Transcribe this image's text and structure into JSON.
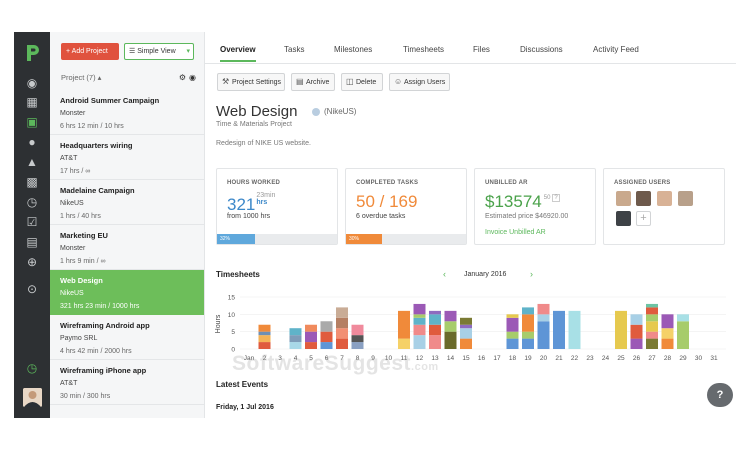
{
  "sidebar": {
    "icons": [
      "dashboard-icon",
      "companies-icon",
      "projects-icon",
      "contacts-icon",
      "invoices-icon",
      "reports-icon",
      "time-icon",
      "tasks-icon",
      "documents-icon",
      "add-icon",
      "expand-icon"
    ],
    "timer_icon": "timer-icon"
  },
  "project_list": {
    "add_project": "Add Project",
    "view_mode": "Simple View",
    "header": "Project (7) ▴",
    "items": [
      {
        "name": "Android Summer Campaign",
        "client": "Monster",
        "hours": "6 hrs 12 min / 10 hrs"
      },
      {
        "name": "Headquarters wiring",
        "client": "AT&T",
        "hours": "17 hrs / ∞"
      },
      {
        "name": "Madelaine Campaign",
        "client": "NikeUS",
        "hours": "1 hrs / 40 hrs"
      },
      {
        "name": "Marketing EU",
        "client": "Monster",
        "hours": "1 hrs 9 min / ∞"
      },
      {
        "name": "Web Design",
        "client": "NikeUS",
        "hours": "321 hrs 23 min / 1000 hrs",
        "selected": true
      },
      {
        "name": "Wireframing Android app",
        "client": "Paymo SRL",
        "hours": "4 hrs 42 min / 2000 hrs"
      },
      {
        "name": "Wireframing iPhone app",
        "client": "AT&T",
        "hours": "30 min / 300 hrs"
      }
    ]
  },
  "tabs": [
    "Overview",
    "Tasks",
    "Milestones",
    "Timesheets",
    "Files",
    "Discussions",
    "Activity Feed"
  ],
  "toolbar": {
    "settings": "Project Settings",
    "archive": "Archive",
    "delete": "Delete",
    "assign": "Assign Users"
  },
  "project": {
    "title": "Web Design",
    "client": "(NikeUS)",
    "type": "Time & Materials Project",
    "description": "Redesign of NIKE US website."
  },
  "cards": {
    "hours": {
      "label": "HOURS WORKED",
      "value": "321",
      "unit_top": "23min",
      "unit_bottom": "hrs",
      "sub": "from 1000 hrs",
      "progress_label": "32%",
      "progress": 0.32
    },
    "tasks": {
      "label": "COMPLETED TASKS",
      "value": "50 / 169",
      "sub": "6 overdue tasks",
      "progress_label": "30%",
      "progress": 0.3
    },
    "ar": {
      "label": "UNBILLED AR",
      "value": "$13574",
      "cents": "50",
      "sub": "Estimated price $46920.00",
      "link": "Invoice Unbilled AR"
    },
    "users": {
      "label": "ASSIGNED USERS",
      "add": "+"
    }
  },
  "timesheets": {
    "title": "Timesheets",
    "month": "January 2016"
  },
  "latest_events": {
    "title": "Latest Events",
    "date": "Friday, 1 Jul 2016"
  },
  "chart_data": {
    "type": "bar",
    "stacked": true,
    "ylabel": "Hours",
    "ylim": [
      0,
      15
    ],
    "yticks": [
      0,
      5,
      10,
      15
    ],
    "categories": [
      "Jan",
      "2",
      "3",
      "4",
      "5",
      "6",
      "7",
      "8",
      "9",
      "10",
      "11",
      "12",
      "13",
      "14",
      "15",
      "16",
      "17",
      "18",
      "19",
      "20",
      "21",
      "22",
      "23",
      "24",
      "25",
      "26",
      "27",
      "28",
      "29",
      "30",
      "31"
    ],
    "days": [
      [],
      [
        [
          "#e05b3d",
          2
        ],
        [
          "#f5b356",
          2
        ],
        [
          "#6f8fb4",
          1
        ],
        [
          "#f08a3a",
          2
        ]
      ],
      [],
      [
        [
          "#a8d8e8",
          2
        ],
        [
          "#7e9cb9",
          2
        ],
        [
          "#5fb3c9",
          2
        ]
      ],
      [
        [
          "#e05b3d",
          2
        ],
        [
          "#9b59b6",
          3
        ],
        [
          "#f08a5d",
          2
        ]
      ],
      [
        [
          "#5e95d6",
          2
        ],
        [
          "#e05b3d",
          3
        ],
        [
          "#aaaaaa",
          3
        ]
      ],
      [
        [
          "#e05b3d",
          3
        ],
        [
          "#f28f73",
          3
        ],
        [
          "#b57f63",
          3
        ],
        [
          "#c9ac96",
          3
        ]
      ],
      [
        [
          "#8aa0c2",
          2
        ],
        [
          "#555555",
          2
        ],
        [
          "#f08a9c",
          3
        ]
      ],
      [],
      [],
      [
        [
          "#f5d168",
          3
        ],
        [
          "#f08a3a",
          8
        ]
      ],
      [
        [
          "#a8d0e6",
          4
        ],
        [
          "#f08a8a",
          3
        ],
        [
          "#5fb3c9",
          2
        ],
        [
          "#a7cc6b",
          1
        ],
        [
          "#9b59b6",
          3
        ]
      ],
      [
        [
          "#f08a8a",
          4
        ],
        [
          "#e05b3d",
          3
        ],
        [
          "#5fb3c9",
          3
        ],
        [
          "#8e6bbf",
          1
        ]
      ],
      [
        [
          "#6a6a2a",
          5
        ],
        [
          "#a7cc6b",
          3
        ],
        [
          "#9b59b6",
          3
        ]
      ],
      [
        [
          "#f08a3a",
          3
        ],
        [
          "#a8d0e6",
          3
        ],
        [
          "#8e6bbf",
          1
        ],
        [
          "#7a7a33",
          2
        ]
      ],
      [],
      [],
      [
        [
          "#5e95d6",
          3
        ],
        [
          "#a7cc6b",
          2
        ],
        [
          "#9b59b6",
          4
        ],
        [
          "#e6c94e",
          1
        ]
      ],
      [
        [
          "#5e95d6",
          3
        ],
        [
          "#a7cc6b",
          2
        ],
        [
          "#f08a3a",
          5
        ],
        [
          "#5fb3c9",
          2
        ]
      ],
      [
        [
          "#5e95d6",
          8
        ],
        [
          "#a8d0e6",
          2
        ],
        [
          "#f08a8a",
          3
        ]
      ],
      [
        [
          "#5e95d6",
          11
        ]
      ],
      [
        [
          "#a8e0e6",
          11
        ]
      ],
      [],
      [],
      [
        [
          "#e6c94e",
          11
        ]
      ],
      [
        [
          "#9b59b6",
          3
        ],
        [
          "#e05b3d",
          4
        ],
        [
          "#a8d0e6",
          3
        ]
      ],
      [
        [
          "#7a7a33",
          3
        ],
        [
          "#f08a8a",
          2
        ],
        [
          "#e6c94e",
          3
        ],
        [
          "#a7cc6b",
          2
        ],
        [
          "#e05b3d",
          2
        ],
        [
          "#6cc4a4",
          1
        ]
      ],
      [
        [
          "#f08a3a",
          3
        ],
        [
          "#f5d168",
          3
        ],
        [
          "#9b59b6",
          4
        ]
      ],
      [
        [
          "#a7cc6b",
          8
        ],
        [
          "#a8e0e6",
          2
        ]
      ],
      [],
      []
    ],
    "colors": {
      "accent": "#5cb85c",
      "danger": "#e0523e",
      "sidebar": "#2d3033",
      "selected": "#6dbe5a"
    }
  },
  "watermark": {
    "main": "SoftwareSuggest",
    "tld": ".com"
  },
  "help": "?"
}
